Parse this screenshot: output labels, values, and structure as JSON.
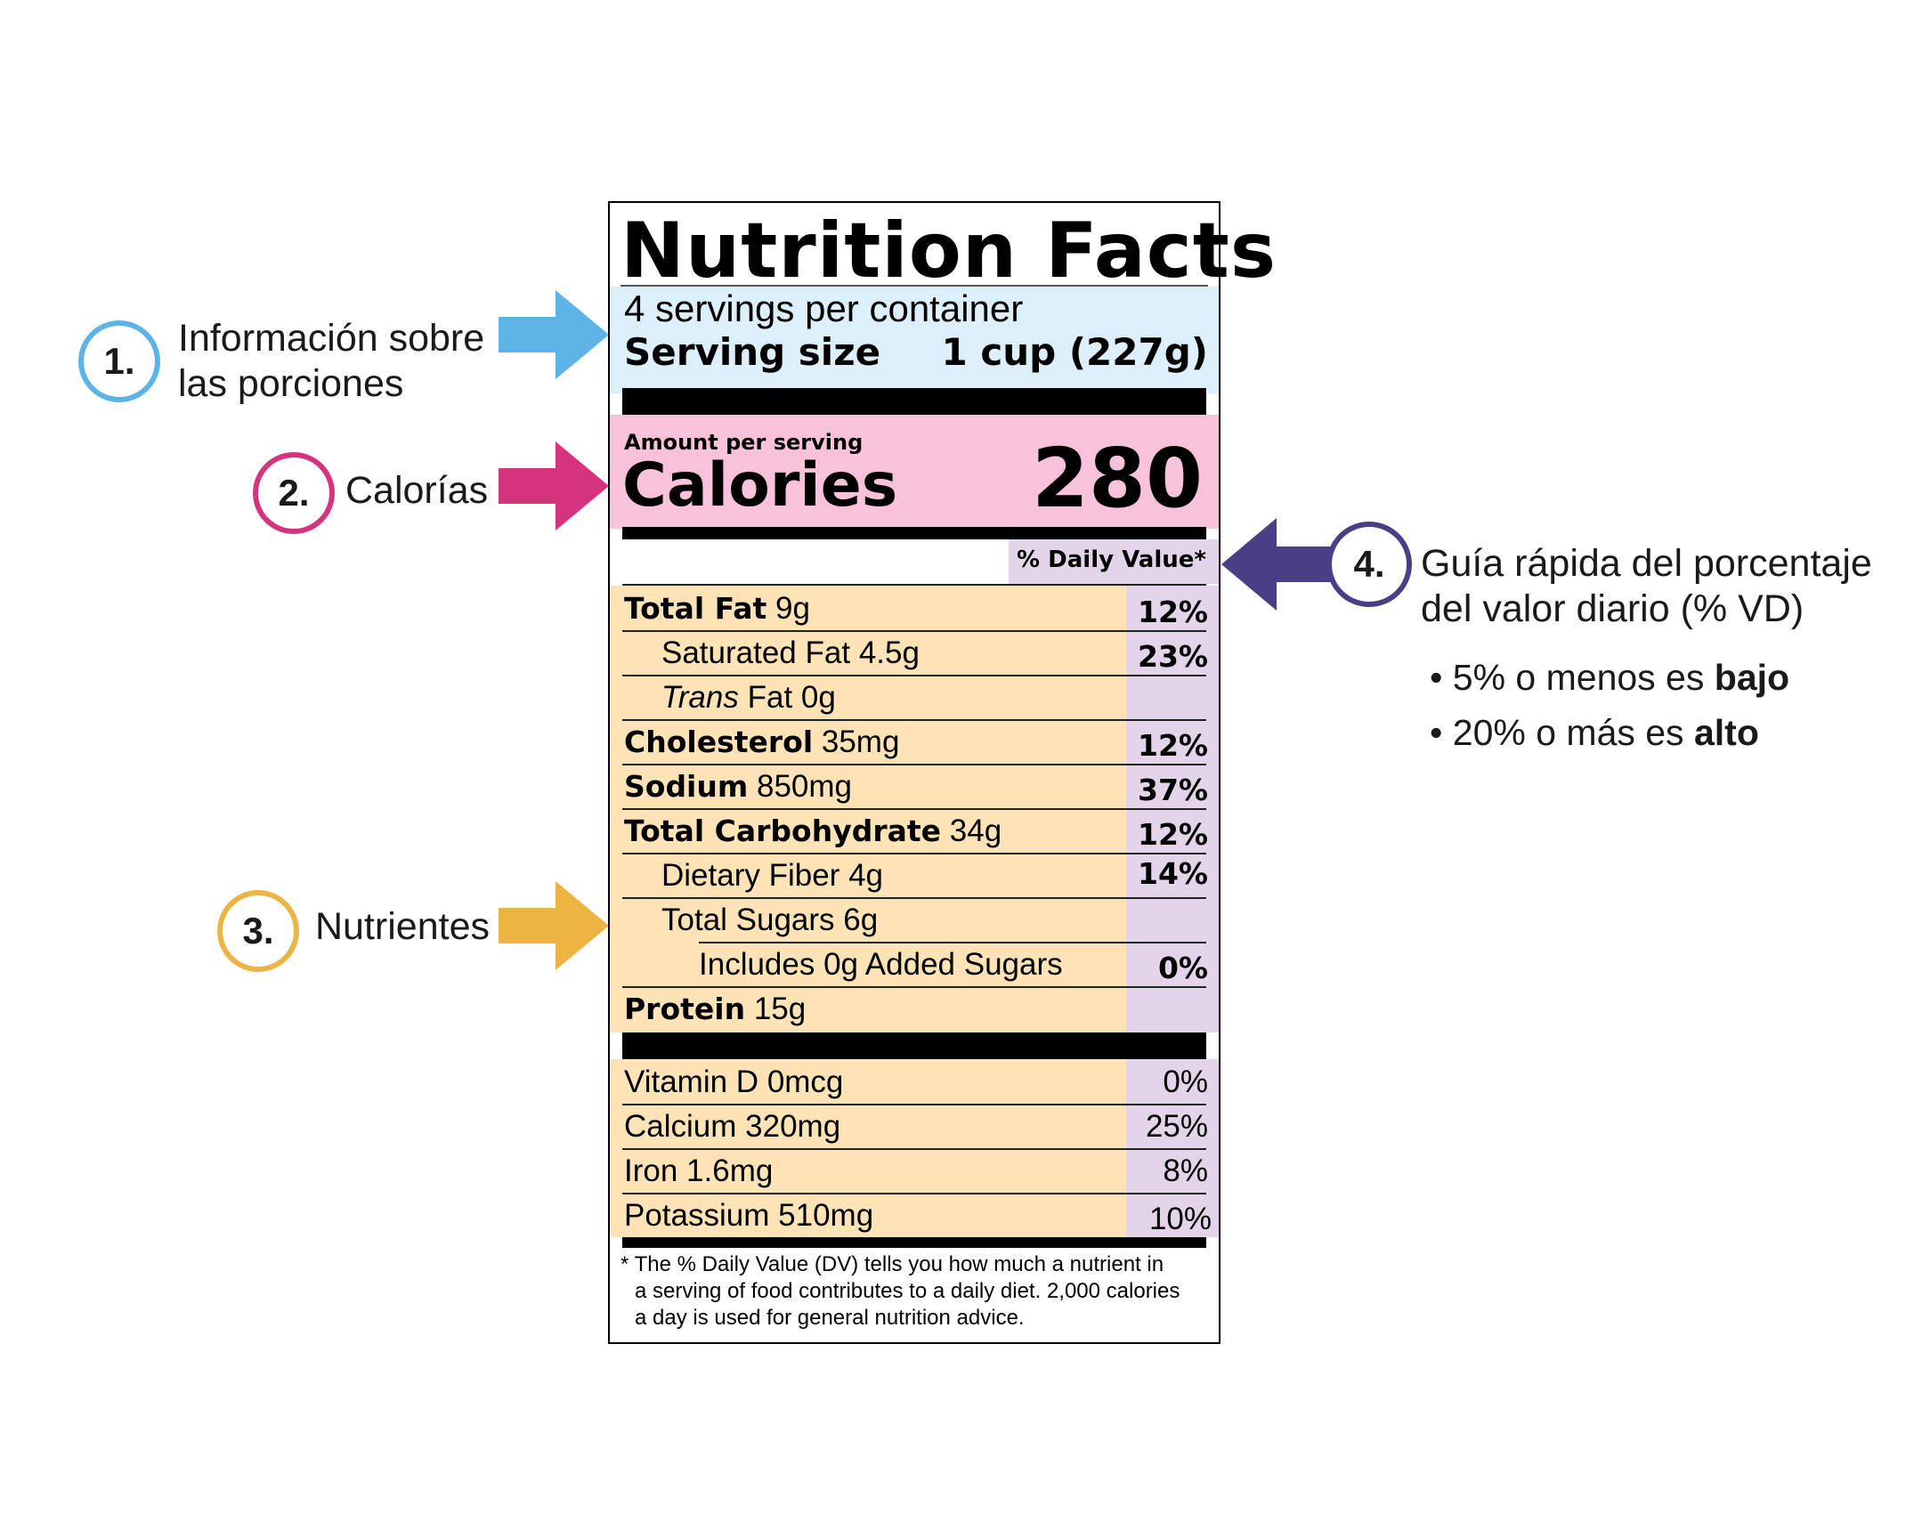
{
  "callouts": {
    "one": {
      "number": "1.",
      "line1": "Información sobre",
      "line2": "las porciones",
      "color": "#5bb3e6"
    },
    "two": {
      "number": "2.",
      "text": "Calorías",
      "color": "#d6337f"
    },
    "three": {
      "number": "3.",
      "text": "Nutrientes",
      "color": "#ecb442"
    },
    "four": {
      "number": "4.",
      "line1": "Guía rápida del porcentaje",
      "line2": "del valor diario (% VD)",
      "color": "#4a3f86"
    }
  },
  "guide": {
    "items": [
      {
        "bullet": "•",
        "prefix": "5% o menos es",
        "emph": "bajo"
      },
      {
        "bullet": "•",
        "prefix": "20% o más es",
        "emph": "alto"
      }
    ]
  },
  "label": {
    "title": "Nutrition Facts",
    "servings_per_container": "4 servings per container",
    "serving_size_label": "Serving size",
    "serving_size_value": "1 cup (227g)",
    "amount_per_serving": "Amount per serving",
    "calories_label": "Calories",
    "calories_value": "280",
    "daily_value_header": "% Daily Value*",
    "nutrients": [
      {
        "name": "Total Fat",
        "amount": "9g",
        "dv": "12%"
      },
      {
        "name": "Saturated Fat",
        "amount": "4.5g",
        "dv": "23%"
      },
      {
        "name_italic": "Trans",
        "name": "Fat",
        "amount": "0g",
        "dv": ""
      },
      {
        "name": "Cholesterol",
        "amount": "35mg",
        "dv": "12%"
      },
      {
        "name": "Sodium",
        "amount": "850mg",
        "dv": "37%"
      },
      {
        "name": "Total Carbohydrate",
        "amount": "34g",
        "dv": "12%"
      },
      {
        "name": "Dietary Fiber",
        "amount": "4g",
        "dv": "14%"
      },
      {
        "name": "Total Sugars",
        "amount": "6g",
        "dv": ""
      },
      {
        "name": "Includes 0g Added Sugars",
        "amount": "",
        "dv": "0%"
      },
      {
        "name": "Protein",
        "amount": "15g",
        "dv": ""
      }
    ],
    "vitamins": [
      {
        "name": "Vitamin D",
        "amount": "0mcg",
        "dv": "0%"
      },
      {
        "name": "Calcium",
        "amount": "320mg",
        "dv": "25%"
      },
      {
        "name": "Iron",
        "amount": "1.6mg",
        "dv": "8%"
      },
      {
        "name": "Potassium",
        "amount": "510mg",
        "dv": "10%"
      }
    ],
    "footnote": {
      "line1": "* The % Daily Value (DV) tells you how much a nutrient in",
      "line2": "a serving of food contributes to a daily diet. 2,000 calories",
      "line3": "a day is used for general nutrition advice."
    },
    "colors": {
      "serving_band": "#dceffb",
      "calories_band": "#f7c2da",
      "nutrient_band": "#fde3b6",
      "dv_band": "#e3d4ea"
    }
  }
}
